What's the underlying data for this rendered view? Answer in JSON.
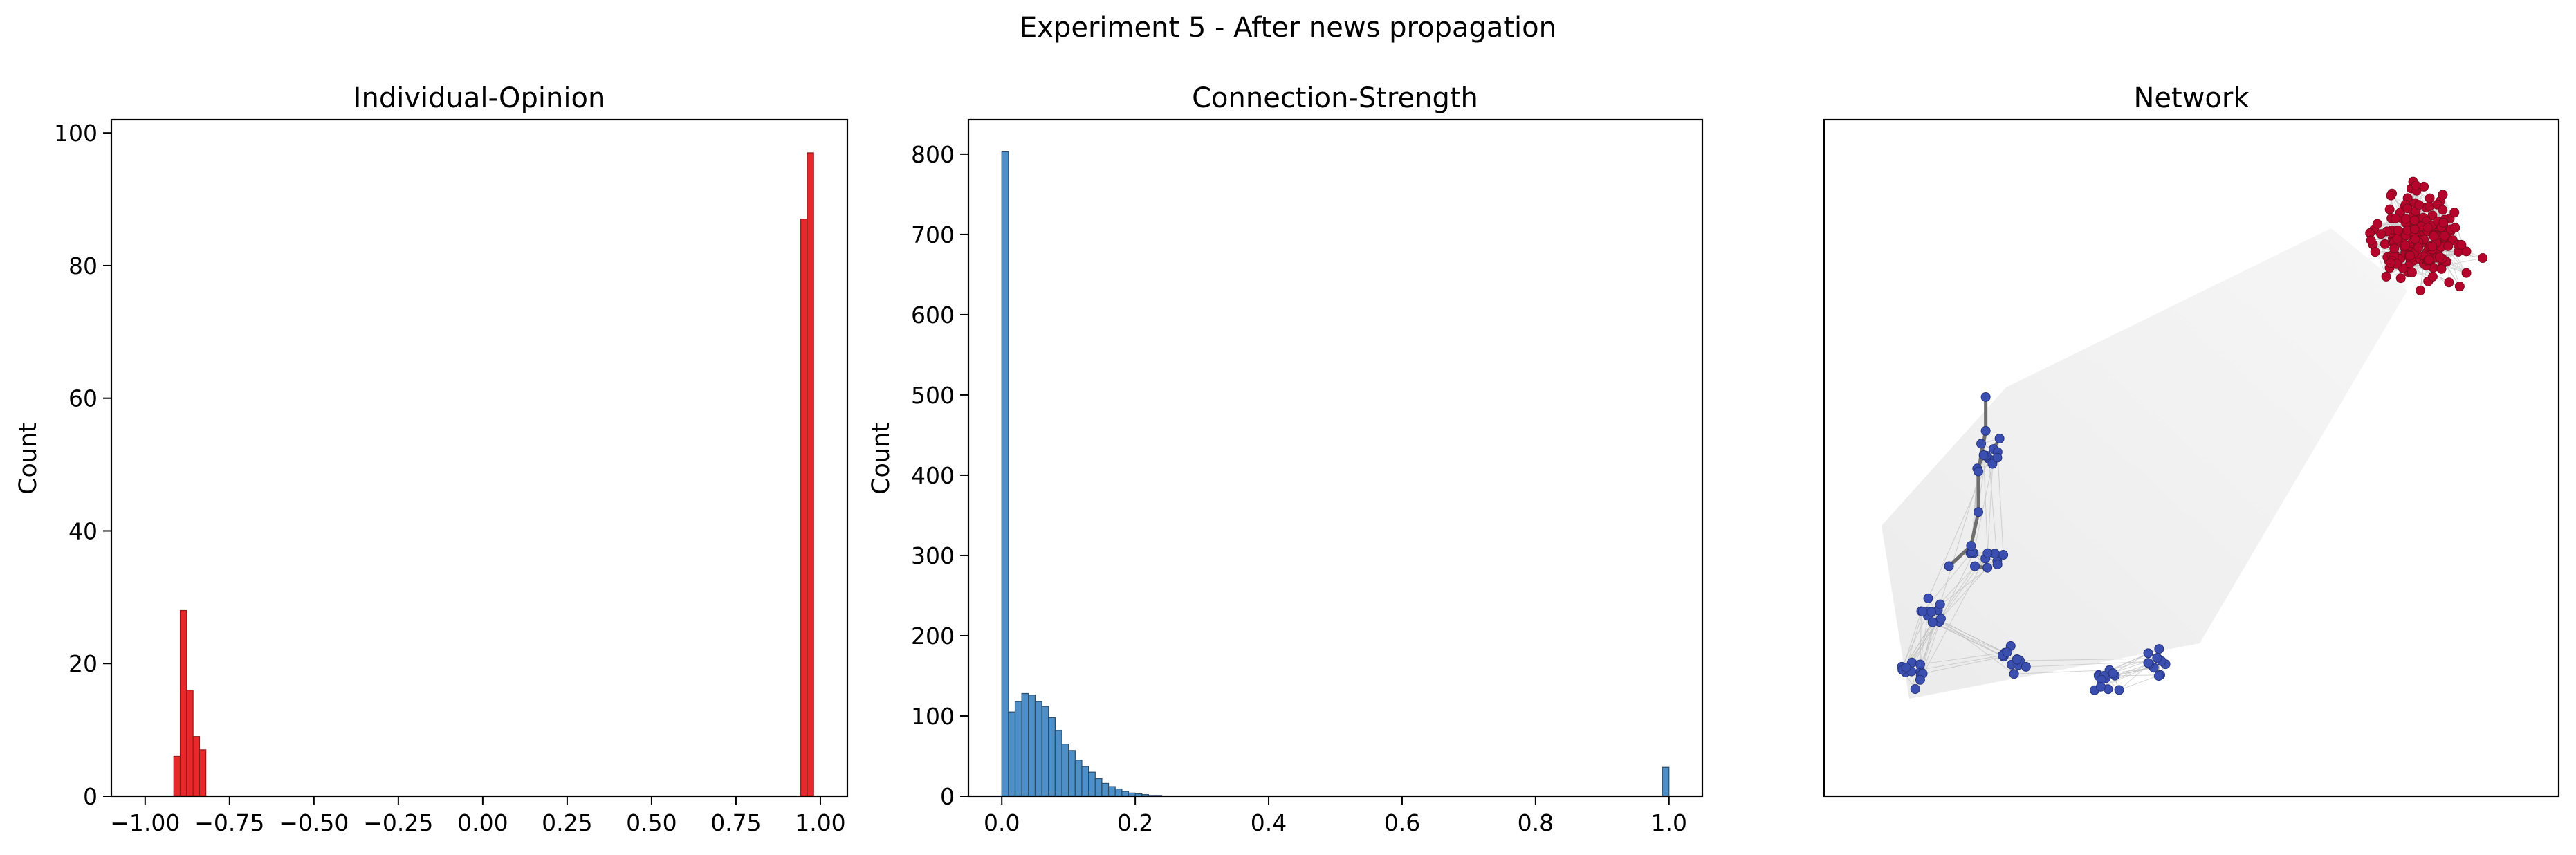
{
  "figure": {
    "title": "Experiment 5 - After news propagation"
  },
  "chart_data": [
    {
      "type": "bar",
      "title": "Individual-Opinion",
      "xlabel": "",
      "ylabel": "Count",
      "xlim": [
        -1.1,
        1.08
      ],
      "ylim": [
        0,
        102
      ],
      "xticks": [
        -1.0,
        -0.75,
        -0.5,
        -0.25,
        0.0,
        0.25,
        0.5,
        0.75,
        1.0
      ],
      "xtick_labels": [
        "−1.00",
        "−0.75",
        "−0.50",
        "−0.25",
        "0.00",
        "0.25",
        "0.50",
        "0.75",
        "1.00"
      ],
      "yticks": [
        0,
        20,
        40,
        60,
        80,
        100
      ],
      "ytick_labels": [
        "0",
        "20",
        "40",
        "60",
        "80",
        "100"
      ],
      "bin_width": 0.019,
      "bar_color": "#e8292b",
      "edge_color": "#8a1a1a",
      "bins": [
        {
          "left": -0.915,
          "count": 6
        },
        {
          "left": -0.896,
          "count": 28
        },
        {
          "left": -0.877,
          "count": 16
        },
        {
          "left": -0.858,
          "count": 9
        },
        {
          "left": -0.839,
          "count": 7
        },
        {
          "left": 0.942,
          "count": 87
        },
        {
          "left": 0.961,
          "count": 97
        }
      ]
    },
    {
      "type": "bar",
      "title": "Connection-Strength",
      "xlabel": "",
      "ylabel": "Count",
      "xlim": [
        -0.05,
        1.05
      ],
      "ylim": [
        0,
        843
      ],
      "xticks": [
        0.0,
        0.2,
        0.4,
        0.6,
        0.8,
        1.0
      ],
      "xtick_labels": [
        "0.0",
        "0.2",
        "0.4",
        "0.6",
        "0.8",
        "1.0"
      ],
      "yticks": [
        0,
        100,
        200,
        300,
        400,
        500,
        600,
        700,
        800
      ],
      "ytick_labels": [
        "0",
        "100",
        "200",
        "300",
        "400",
        "500",
        "600",
        "700",
        "800"
      ],
      "bin_width": 0.01,
      "bar_color": "#4d8fc6",
      "edge_color": "#2a4a66",
      "bins": [
        {
          "left": 0.0,
          "count": 803
        },
        {
          "left": 0.01,
          "count": 105
        },
        {
          "left": 0.02,
          "count": 118
        },
        {
          "left": 0.03,
          "count": 128
        },
        {
          "left": 0.04,
          "count": 126
        },
        {
          "left": 0.05,
          "count": 118
        },
        {
          "left": 0.06,
          "count": 112
        },
        {
          "left": 0.07,
          "count": 98
        },
        {
          "left": 0.08,
          "count": 82
        },
        {
          "left": 0.09,
          "count": 65
        },
        {
          "left": 0.1,
          "count": 57
        },
        {
          "left": 0.11,
          "count": 45
        },
        {
          "left": 0.12,
          "count": 37
        },
        {
          "left": 0.13,
          "count": 30
        },
        {
          "left": 0.14,
          "count": 22
        },
        {
          "left": 0.15,
          "count": 16
        },
        {
          "left": 0.16,
          "count": 12
        },
        {
          "left": 0.17,
          "count": 9
        },
        {
          "left": 0.18,
          "count": 6
        },
        {
          "left": 0.19,
          "count": 4
        },
        {
          "left": 0.2,
          "count": 3
        },
        {
          "left": 0.21,
          "count": 2
        },
        {
          "left": 0.22,
          "count": 1
        },
        {
          "left": 0.23,
          "count": 1
        },
        {
          "left": 0.99,
          "count": 36
        }
      ]
    },
    {
      "type": "network",
      "title": "Network",
      "clusters": [
        {
          "name": "",
          "node_color": "#b5052c",
          "node_count": 190,
          "bounds": {
            "x": [
              0.67,
              0.95
            ],
            "y": [
              0.69,
              0.96
            ]
          }
        },
        {
          "name": "",
          "node_color": "#3a4fb0",
          "node_count": 80,
          "bounds": {
            "x": [
              0.05,
              0.5
            ],
            "y": [
              0.06,
              0.6
            ]
          }
        }
      ],
      "edge_color": "#bdbdbd",
      "strong_edge_color": "#6e6e6e",
      "axes_visible": false
    }
  ]
}
